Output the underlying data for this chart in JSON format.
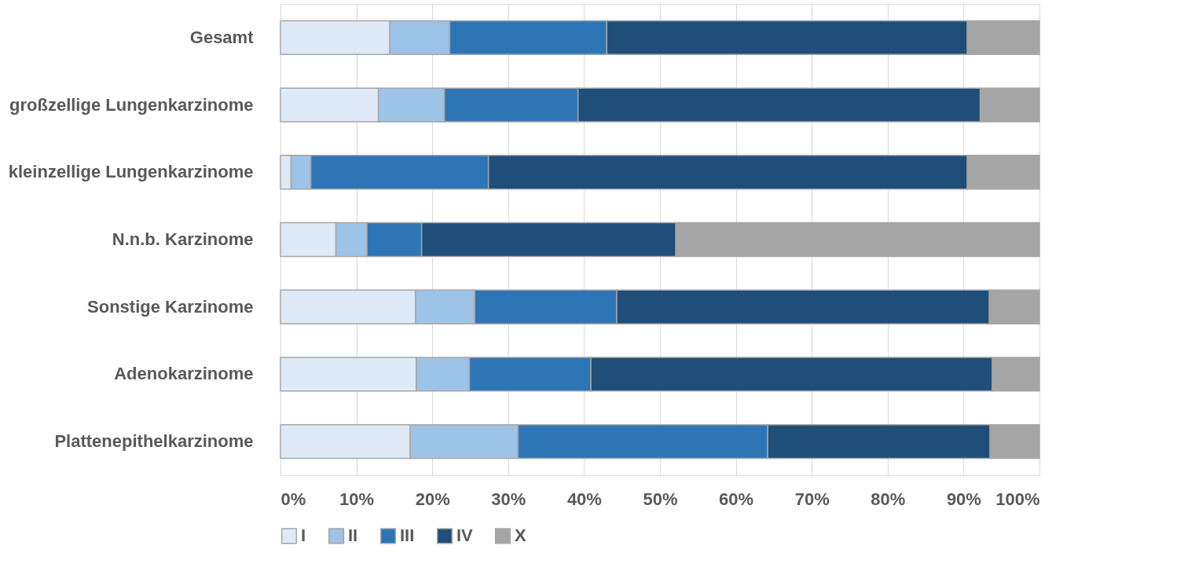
{
  "chart_data": {
    "type": "bar",
    "orientation": "horizontal",
    "stacked": true,
    "categories": [
      "Gesamt",
      "großzellige Lungenkarzinome",
      "kleinzellige Lungenkarzinome",
      "N.n.b. Karzinome",
      "Sonstige Karzinome",
      "Adenokarzinome",
      "Plattenepithelkarzinome"
    ],
    "series": [
      {
        "name": "I",
        "color": "#deeaf6",
        "values": [
          14.4,
          12.9,
          1.4,
          7.3,
          17.8,
          17.9,
          17.1
        ]
      },
      {
        "name": "II",
        "color": "#9dc3e6",
        "values": [
          7.9,
          8.7,
          2.6,
          4.1,
          7.8,
          7.0,
          14.2
        ]
      },
      {
        "name": "III",
        "color": "#2e75b6",
        "values": [
          20.7,
          17.6,
          23.4,
          7.2,
          18.7,
          16.0,
          32.9
        ]
      },
      {
        "name": "IV",
        "color": "#1f4e79",
        "values": [
          47.5,
          53.0,
          63.1,
          33.5,
          49.1,
          52.9,
          29.3
        ]
      },
      {
        "name": "X",
        "color": "#a5a5a5",
        "values": [
          9.5,
          7.8,
          9.5,
          47.9,
          6.6,
          6.2,
          6.5
        ]
      }
    ],
    "xlim": [
      0,
      100
    ],
    "xticks": [
      {
        "value": 0,
        "label": "0%"
      },
      {
        "value": 10,
        "label": "10%"
      },
      {
        "value": 20,
        "label": "20%"
      },
      {
        "value": 30,
        "label": "30%"
      },
      {
        "value": 40,
        "label": "40%"
      },
      {
        "value": 50,
        "label": "50%"
      },
      {
        "value": 60,
        "label": "60%"
      },
      {
        "value": 70,
        "label": "70%"
      },
      {
        "value": 80,
        "label": "80%"
      },
      {
        "value": 90,
        "label": "90%"
      },
      {
        "value": 100,
        "label": "100%"
      }
    ],
    "grid": "x",
    "legend": "bottom"
  }
}
